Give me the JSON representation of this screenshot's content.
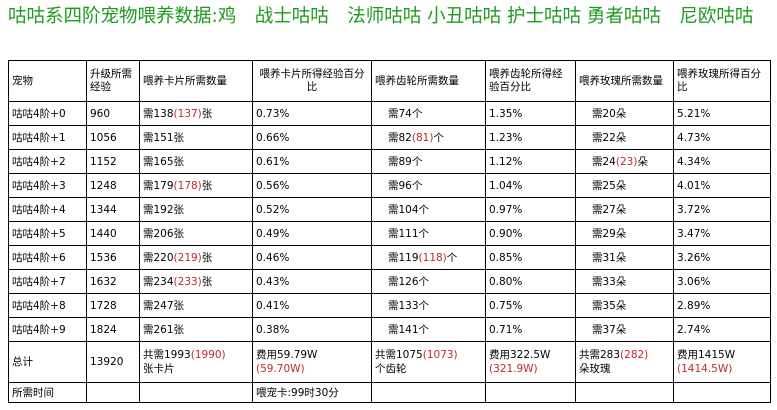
{
  "title": "咕咕系四阶宠物喂养数据:鸡　战士咕咕　法师咕咕 小丑咕咕 护士咕咕 勇者咕咕　尼欧咕咕",
  "headers": [
    "宠物",
    "升级所需经验",
    "喂养卡片所需数量",
    "喂养卡片所得经验百分比",
    "喂养齿轮所需数量",
    "喂养齿轮所得经验百分比",
    "喂养玫瑰所需数量",
    "喂养玫瑰所得百分比"
  ],
  "rows": [
    {
      "pet": "咕咕4阶+0",
      "exp": "960",
      "card": "需138",
      "card_alt": "(137)",
      "card_unit": "张",
      "card_pct": "0.73%",
      "gear": "需74个",
      "gear_alt": "",
      "gear_unit": "",
      "gear_pct": "1.35%",
      "rose": "需20朵",
      "rose_alt": "",
      "rose_unit": "",
      "rose_pct": "5.21%"
    },
    {
      "pet": "咕咕4阶+1",
      "exp": "1056",
      "card": "需151张",
      "card_alt": "",
      "card_unit": "",
      "card_pct": "0.66%",
      "gear": "需82",
      "gear_alt": "(81)",
      "gear_unit": "个",
      "gear_pct": "1.23%",
      "rose": "需22朵",
      "rose_alt": "",
      "rose_unit": "",
      "rose_pct": "4.73%"
    },
    {
      "pet": "咕咕4阶+2",
      "exp": "1152",
      "card": "需165张",
      "card_alt": "",
      "card_unit": "",
      "card_pct": "0.61%",
      "gear": "需89个",
      "gear_alt": "",
      "gear_unit": "",
      "gear_pct": "1.12%",
      "rose": "需24",
      "rose_alt": "(23)",
      "rose_unit": "朵",
      "rose_pct": "4.34%"
    },
    {
      "pet": "咕咕4阶+3",
      "exp": "1248",
      "card": "需179",
      "card_alt": "(178)",
      "card_unit": "张",
      "card_pct": "0.56%",
      "gear": "需96个",
      "gear_alt": "",
      "gear_unit": "",
      "gear_pct": "1.04%",
      "rose": "需25朵",
      "rose_alt": "",
      "rose_unit": "",
      "rose_pct": "4.01%"
    },
    {
      "pet": "咕咕4阶+4",
      "exp": "1344",
      "card": "需192张",
      "card_alt": "",
      "card_unit": "",
      "card_pct": "0.52%",
      "gear": "需104个",
      "gear_alt": "",
      "gear_unit": "",
      "gear_pct": "0.97%",
      "rose": "需27朵",
      "rose_alt": "",
      "rose_unit": "",
      "rose_pct": "3.72%"
    },
    {
      "pet": "咕咕4阶+5",
      "exp": "1440",
      "card": "需206张",
      "card_alt": "",
      "card_unit": "",
      "card_pct": "0.49%",
      "gear": "需111个",
      "gear_alt": "",
      "gear_unit": "",
      "gear_pct": "0.90%",
      "rose": "需29朵",
      "rose_alt": "",
      "rose_unit": "",
      "rose_pct": "3.47%"
    },
    {
      "pet": "咕咕4阶+6",
      "exp": "1536",
      "card": "需220",
      "card_alt": "(219)",
      "card_unit": "张",
      "card_pct": "0.46%",
      "gear": "需119",
      "gear_alt": "(118)",
      "gear_unit": "个",
      "gear_pct": "0.85%",
      "rose": "需31朵",
      "rose_alt": "",
      "rose_unit": "",
      "rose_pct": "3.26%"
    },
    {
      "pet": "咕咕4阶+7",
      "exp": "1632",
      "card": "需234",
      "card_alt": "(233)",
      "card_unit": "张",
      "card_pct": "0.43%",
      "gear": "需126个",
      "gear_alt": "",
      "gear_unit": "",
      "gear_pct": "0.80%",
      "rose": "需33朵",
      "rose_alt": "",
      "rose_unit": "",
      "rose_pct": "3.06%"
    },
    {
      "pet": "咕咕4阶+8",
      "exp": "1728",
      "card": "需247张",
      "card_alt": "",
      "card_unit": "",
      "card_pct": "0.41%",
      "gear": "需133个",
      "gear_alt": "",
      "gear_unit": "",
      "gear_pct": "0.75%",
      "rose": "需35朵",
      "rose_alt": "",
      "rose_unit": "",
      "rose_pct": "2.89%"
    },
    {
      "pet": "咕咕4阶+9",
      "exp": "1824",
      "card": "需261张",
      "card_alt": "",
      "card_unit": "",
      "card_pct": "0.38%",
      "gear": "需141个",
      "gear_alt": "",
      "gear_unit": "",
      "gear_pct": "0.71%",
      "rose": "需37朵",
      "rose_alt": "",
      "rose_unit": "",
      "rose_pct": "2.74%"
    }
  ],
  "total": {
    "label": "总计",
    "exp": "13920",
    "card": "共需1993",
    "card_alt": "(1990)",
    "card_unit": "张卡片",
    "card_cost": "费用59.79W",
    "card_cost_alt": "(59.70W)",
    "gear": "共需1075",
    "gear_alt": "(1073)",
    "gear_unit": "个齿轮",
    "gear_cost": "费用322.5W",
    "gear_cost_alt": "(321.9W)",
    "rose": "共需283",
    "rose_alt": "(282)",
    "rose_unit": "朵玫瑰",
    "rose_cost": "费用1415W",
    "rose_cost_alt": "(1414.5W)"
  },
  "time_row": {
    "label": "所需时间",
    "note": "喂宠卡:99时30分"
  }
}
